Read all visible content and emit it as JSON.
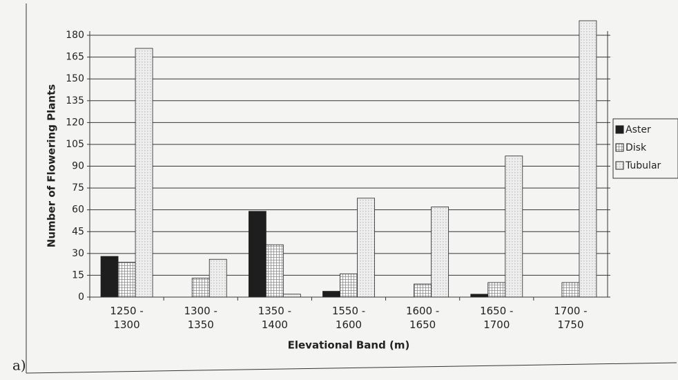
{
  "chart_data": {
    "type": "bar",
    "panel_label": "a)",
    "x_label": "Elevational Band (m)",
    "y_label": "Number of Flowering Plants",
    "categories": [
      "1250 - 1300",
      "1300 - 1350",
      "1350 - 1400",
      "1550 - 1600",
      "1600 - 1650",
      "1650 - 1700",
      "1700 - 1750"
    ],
    "series": [
      {
        "name": "Aster",
        "color": "#1e1e1e",
        "values": [
          28,
          0,
          59,
          4,
          0,
          2,
          0
        ]
      },
      {
        "name": "Disk",
        "color": "#8a8a8a",
        "values": [
          24,
          13,
          36,
          16,
          9,
          10,
          10
        ]
      },
      {
        "name": "Tubular",
        "color": "#c4c4c4",
        "values": [
          171,
          26,
          2,
          68,
          62,
          97,
          190
        ]
      }
    ],
    "ylim": [
      0,
      190
    ],
    "yticks": [
      0,
      15,
      30,
      45,
      60,
      75,
      90,
      105,
      120,
      135,
      150,
      165,
      180
    ],
    "grid": true,
    "legend": "right"
  }
}
